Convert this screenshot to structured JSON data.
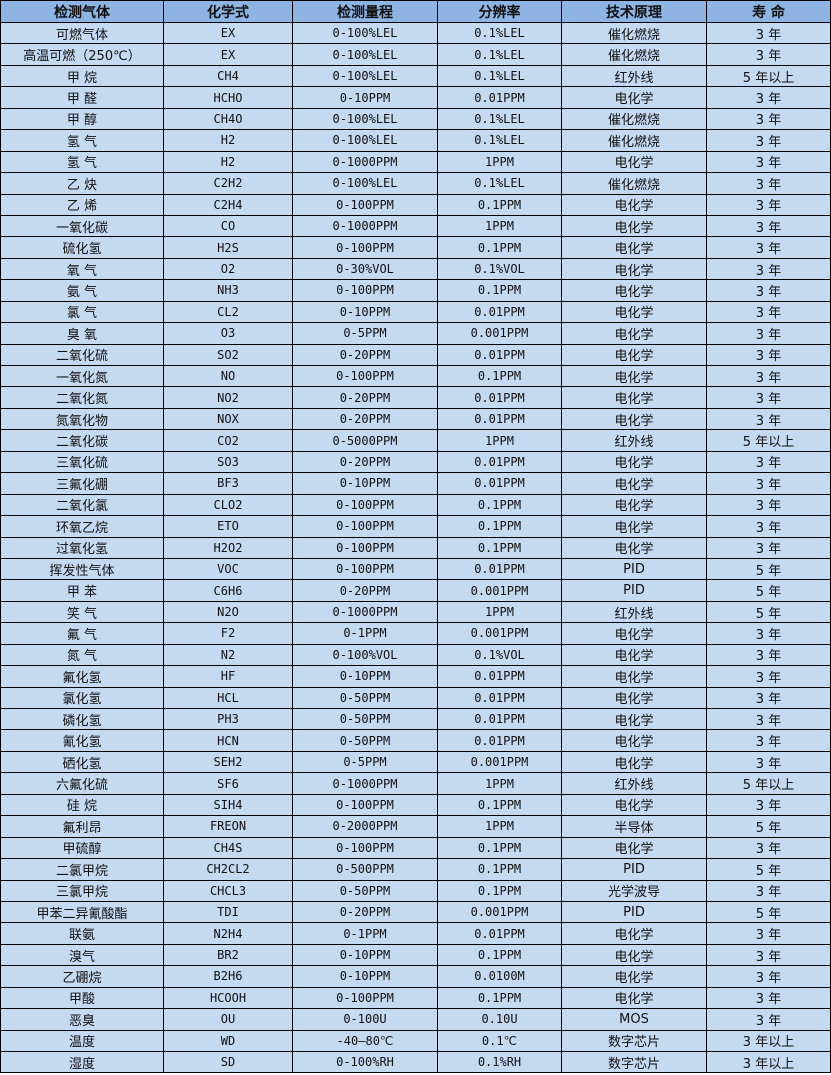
{
  "colors": {
    "header_bg": "#8DB4E2",
    "row_bg": "#C5D9F1",
    "border": "#000000"
  },
  "headers": [
    "检测气体",
    "化学式",
    "检测量程",
    "分辨率",
    "技术原理",
    "寿 命"
  ],
  "rows": [
    [
      "可燃气体",
      "EX",
      "0-100%LEL",
      "0.1%LEL",
      "催化燃烧",
      "3 年"
    ],
    [
      "高温可燃（250℃）",
      "EX",
      "0-100%LEL",
      "0.1%LEL",
      "催化燃烧",
      "3 年"
    ],
    [
      "甲 烷",
      "CH4",
      "0-100%LEL",
      "0.1%LEL",
      "红外线",
      "5 年以上"
    ],
    [
      "甲 醛",
      "HCHO",
      "0-10PPM",
      "0.01PPM",
      "电化学",
      "3 年"
    ],
    [
      "甲 醇",
      "CH4O",
      "0-100%LEL",
      "0.1%LEL",
      "催化燃烧",
      "3 年"
    ],
    [
      "氢 气",
      "H2",
      "0-100%LEL",
      "0.1%LEL",
      "催化燃烧",
      "3 年"
    ],
    [
      "氢 气",
      "H2",
      "0-1000PPM",
      "1PPM",
      "电化学",
      "3 年"
    ],
    [
      "乙 炔",
      "C2H2",
      "0-100%LEL",
      "0.1%LEL",
      "催化燃烧",
      "3 年"
    ],
    [
      "乙 烯",
      "C2H4",
      "0-100PPM",
      "0.1PPM",
      "电化学",
      "3 年"
    ],
    [
      "一氧化碳",
      "CO",
      "0-1000PPM",
      "1PPM",
      "电化学",
      "3 年"
    ],
    [
      "硫化氢",
      "H2S",
      "0-100PPM",
      "0.1PPM",
      "电化学",
      "3 年"
    ],
    [
      "氧 气",
      "O2",
      "0-30%VOL",
      "0.1%VOL",
      "电化学",
      "3 年"
    ],
    [
      "氨 气",
      "NH3",
      "0-100PPM",
      "0.1PPM",
      "电化学",
      "3 年"
    ],
    [
      "氯 气",
      "CL2",
      "0-10PPM",
      "0.01PPM",
      "电化学",
      "3 年"
    ],
    [
      "臭 氧",
      "O3",
      "0-5PPM",
      "0.001PPM",
      "电化学",
      "3 年"
    ],
    [
      "二氧化硫",
      "SO2",
      "0-20PPM",
      "0.01PPM",
      "电化学",
      "3 年"
    ],
    [
      "一氧化氮",
      "NO",
      "0-100PPM",
      "0.1PPM",
      "电化学",
      "3 年"
    ],
    [
      "二氧化氮",
      "NO2",
      "0-20PPM",
      "0.01PPM",
      "电化学",
      "3 年"
    ],
    [
      "氮氧化物",
      "NOX",
      "0-20PPM",
      "0.01PPM",
      "电化学",
      "3 年"
    ],
    [
      "二氧化碳",
      "CO2",
      "0-5000PPM",
      "1PPM",
      "红外线",
      "5 年以上"
    ],
    [
      "三氧化硫",
      "SO3",
      "0-20PPM",
      "0.01PPM",
      "电化学",
      "3 年"
    ],
    [
      "三氟化硼",
      "BF3",
      "0-10PPM",
      "0.01PPM",
      "电化学",
      "3 年"
    ],
    [
      "二氧化氯",
      "CLO2",
      "0-100PPM",
      "0.1PPM",
      "电化学",
      "3 年"
    ],
    [
      "环氧乙烷",
      "ETO",
      "0-100PPM",
      "0.1PPM",
      "电化学",
      "3 年"
    ],
    [
      "过氧化氢",
      "H2O2",
      "0-100PPM",
      "0.1PPM",
      "电化学",
      "3 年"
    ],
    [
      "挥发性气体",
      "VOC",
      "0-100PPM",
      "0.01PPM",
      "PID",
      "5 年"
    ],
    [
      "甲 苯",
      "C6H6",
      "0-20PPM",
      "0.001PPM",
      "PID",
      "5 年"
    ],
    [
      "笑 气",
      "N2O",
      "0-1000PPM",
      "1PPM",
      "红外线",
      "5 年"
    ],
    [
      "氟 气",
      "F2",
      "0-1PPM",
      "0.001PPM",
      "电化学",
      "3 年"
    ],
    [
      "氮 气",
      "N2",
      "0-100%VOL",
      "0.1%VOL",
      "电化学",
      "3 年"
    ],
    [
      "氟化氢",
      "HF",
      "0-10PPM",
      "0.01PPM",
      "电化学",
      "3 年"
    ],
    [
      "氯化氢",
      "HCL",
      "0-50PPM",
      "0.01PPM",
      "电化学",
      "3 年"
    ],
    [
      "磷化氢",
      "PH3",
      "0-50PPM",
      "0.01PPM",
      "电化学",
      "3 年"
    ],
    [
      "氰化氢",
      "HCN",
      "0-50PPM",
      "0.01PPM",
      "电化学",
      "3 年"
    ],
    [
      "硒化氢",
      "SEH2",
      "0-5PPM",
      "0.001PPM",
      "电化学",
      "3 年"
    ],
    [
      "六氟化硫",
      "SF6",
      "0-1000PPM",
      "1PPM",
      "红外线",
      "5 年以上"
    ],
    [
      "硅 烷",
      "SIH4",
      "0-100PPM",
      "0.1PPM",
      "电化学",
      "3 年"
    ],
    [
      "氟利昂",
      "FREON",
      "0-2000PPM",
      "1PPM",
      "半导体",
      "5 年"
    ],
    [
      "甲硫醇",
      "CH4S",
      "0-100PPM",
      "0.1PPM",
      "电化学",
      "3 年"
    ],
    [
      "二氯甲烷",
      "CH2CL2",
      "0-500PPM",
      "0.1PPM",
      "PID",
      "5 年"
    ],
    [
      "三氯甲烷",
      "CHCL3",
      "0-50PPM",
      "0.1PPM",
      "光学波导",
      "3 年"
    ],
    [
      "甲苯二异氰酸酯",
      "TDI",
      "0-20PPM",
      "0.001PPM",
      "PID",
      "5 年"
    ],
    [
      "联氨",
      "N2H4",
      "0-1PPM",
      "0.01PPM",
      "电化学",
      "3 年"
    ],
    [
      "溴气",
      "BR2",
      "0-10PPM",
      "0.1PPM",
      "电化学",
      "3 年"
    ],
    [
      "乙硼烷",
      "B2H6",
      "0-10PPM",
      "0.0100M",
      "电化学",
      "3 年"
    ],
    [
      "甲酸",
      "HCOOH",
      "0-100PPM",
      "0.1PPM",
      "电化学",
      "3 年"
    ],
    [
      "恶臭",
      "OU",
      "0-100U",
      "0.10U",
      "MOS",
      "3 年"
    ],
    [
      "温度",
      "WD",
      "-40—80℃",
      "0.1℃",
      "数字芯片",
      "3 年以上"
    ],
    [
      "湿度",
      "SD",
      "0-100%RH",
      "0.1%RH",
      "数字芯片",
      "3 年以上"
    ]
  ]
}
